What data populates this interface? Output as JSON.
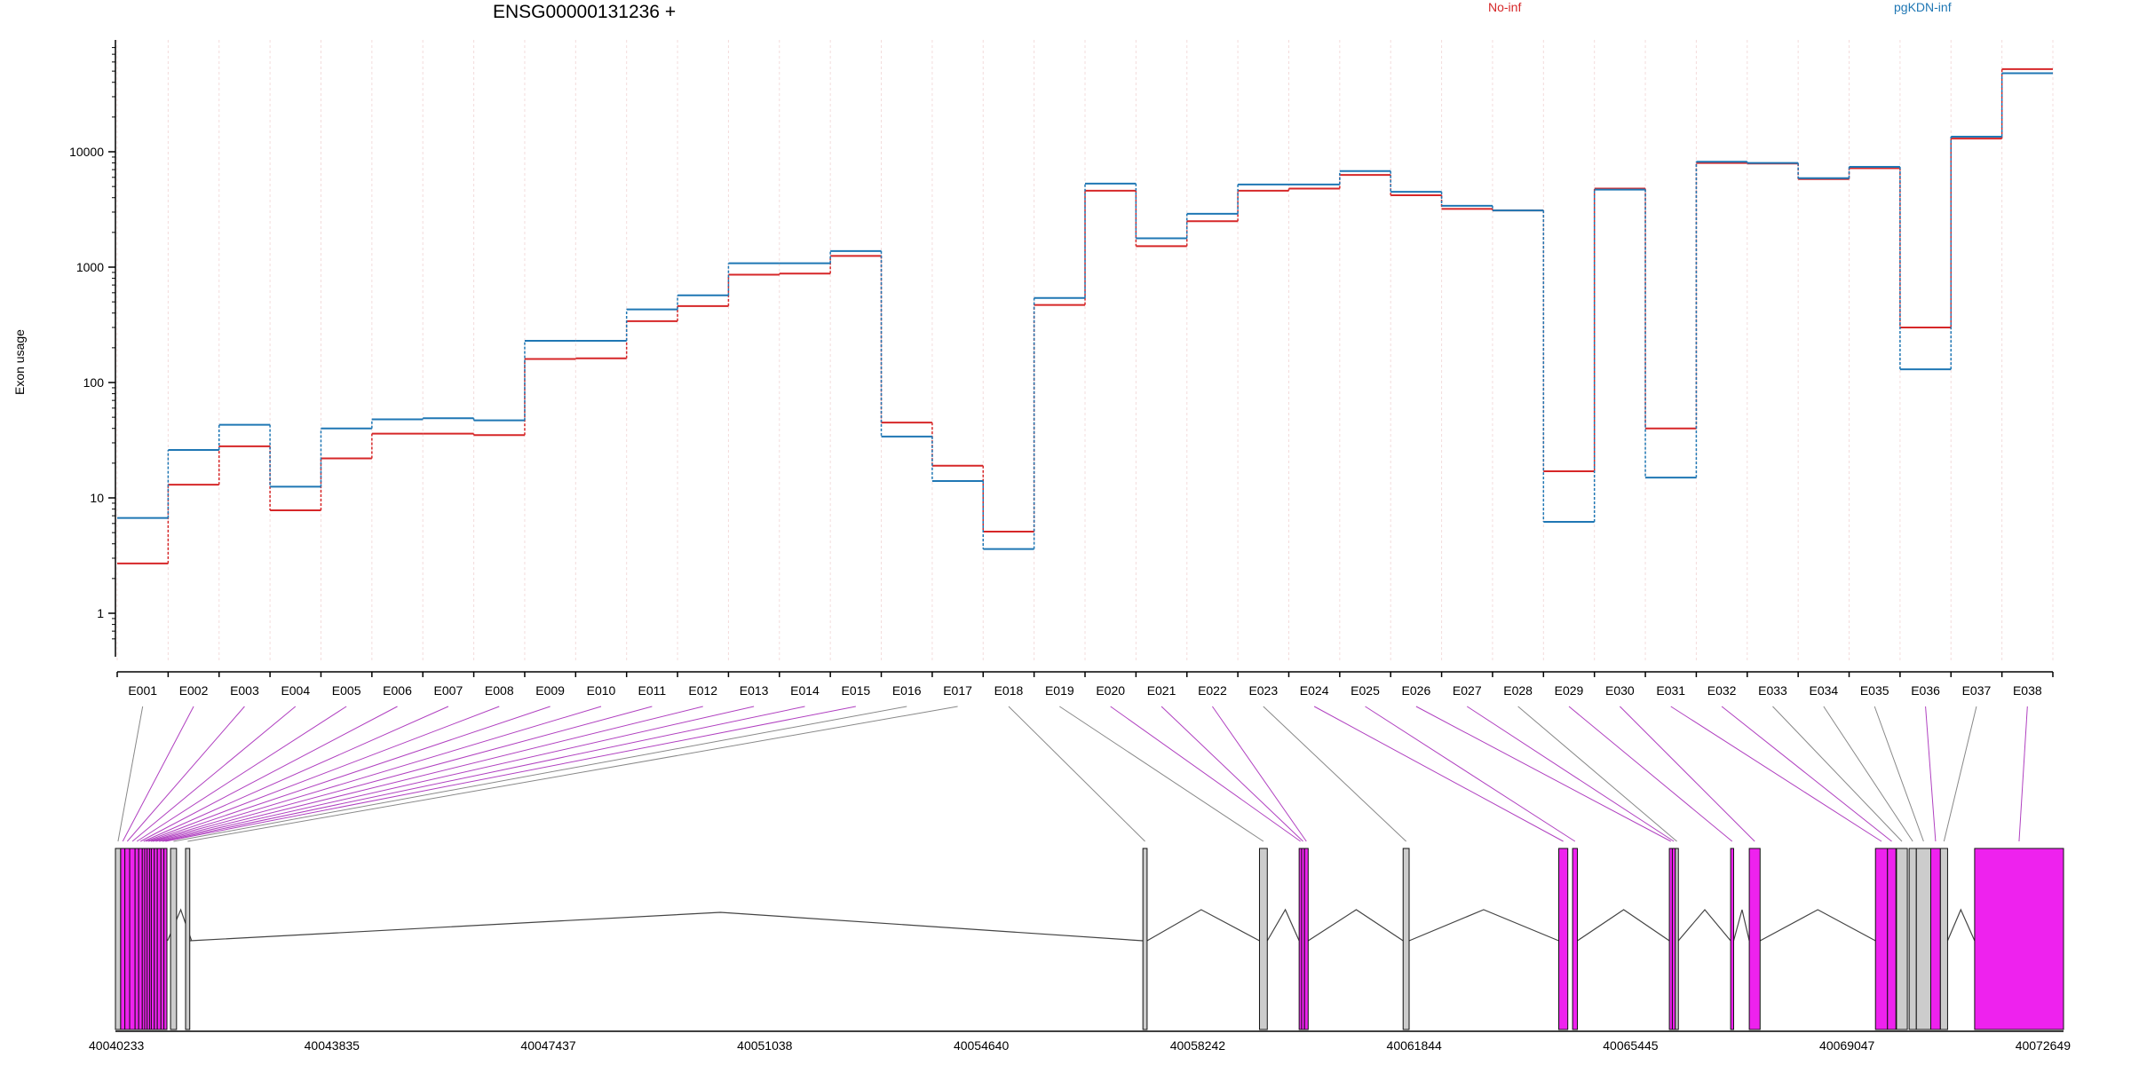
{
  "chart_data": {
    "type": "line",
    "title": "ENSG00000131236 +",
    "ylabel": "Exon usage",
    "xlabel": "",
    "yscale": "log",
    "ylim": [
      0.6,
      85000
    ],
    "yticks": [
      1,
      10,
      100,
      1000,
      10000
    ],
    "yticklabels": [
      "1",
      "10",
      "100",
      "1000",
      "10000"
    ],
    "grid": true,
    "legend_position": "top",
    "colors": {
      "No-inf": "#d62728",
      "pgKDN-inf": "#1f77b4",
      "highlight": "#ee22ee",
      "exon_gray": "#cccccc",
      "intron": "#444444"
    },
    "categories": [
      "E001",
      "E002",
      "E003",
      "E004",
      "E005",
      "E006",
      "E007",
      "E008",
      "E009",
      "E010",
      "E011",
      "E012",
      "E013",
      "E014",
      "E015",
      "E016",
      "E017",
      "E018",
      "E019",
      "E020",
      "E021",
      "E022",
      "E023",
      "E024",
      "E025",
      "E026",
      "E027",
      "E028",
      "E029",
      "E030",
      "E031",
      "E032",
      "E033",
      "E034",
      "E035",
      "E036",
      "E037",
      "E038"
    ],
    "series": [
      {
        "name": "No-inf",
        "color": "#d62728",
        "values": [
          2.7,
          13,
          28,
          7.8,
          22,
          36,
          36,
          35,
          160,
          162,
          340,
          460,
          860,
          880,
          1250,
          45,
          19,
          5.1,
          470,
          4600,
          1520,
          2500,
          4600,
          4800,
          6300,
          4200,
          3200,
          3100,
          17,
          4800,
          40,
          8000,
          7900,
          5800,
          7200,
          300,
          13000,
          52000
        ]
      },
      {
        "name": "pgKDN-inf",
        "color": "#1f77b4",
        "values": [
          6.7,
          26,
          43,
          12.5,
          40,
          48,
          49,
          47,
          230,
          230,
          430,
          570,
          1080,
          1080,
          1380,
          34,
          14,
          3.6,
          540,
          5300,
          1780,
          2900,
          5200,
          5200,
          6800,
          4500,
          3400,
          3100,
          6.2,
          4700,
          15,
          8200,
          8000,
          5900,
          7400,
          130,
          13500,
          48000
        ]
      }
    ],
    "genomic_axis": {
      "tick_labels": [
        "40040233",
        "40043835",
        "40047437",
        "40051038",
        "40054640",
        "40058242",
        "40061844",
        "40065445",
        "40069047",
        "40072649"
      ]
    },
    "exons_highlighted": [
      "E002",
      "E003",
      "E004",
      "E005",
      "E006",
      "E007",
      "E008",
      "E009",
      "E010",
      "E011",
      "E012",
      "E013",
      "E014",
      "E015",
      "E020",
      "E021",
      "E022",
      "E024",
      "E025",
      "E026",
      "E027",
      "E029",
      "E030",
      "E031",
      "E032",
      "E036",
      "E038"
    ]
  }
}
